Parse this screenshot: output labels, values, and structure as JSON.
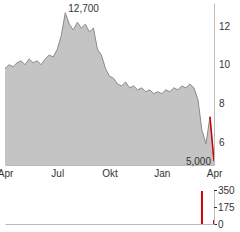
{
  "chart_data": [
    {
      "type": "area",
      "categories": [
        "Apr",
        null,
        null,
        null,
        null,
        null,
        null,
        null,
        null,
        null,
        null,
        null,
        null,
        "Jul",
        null,
        null,
        null,
        null,
        null,
        null,
        null,
        null,
        null,
        null,
        null,
        null,
        "Okt",
        null,
        null,
        null,
        null,
        null,
        null,
        null,
        null,
        null,
        null,
        null,
        null,
        "Jan",
        null,
        null,
        null,
        null,
        null,
        null,
        null,
        null,
        null,
        null,
        null,
        null,
        "Apr"
      ],
      "values": [
        9.8,
        10.0,
        9.9,
        10.1,
        10.2,
        10.0,
        10.3,
        10.1,
        10.2,
        10.0,
        10.3,
        10.5,
        10.4,
        10.8,
        11.5,
        12.7,
        12.1,
        11.8,
        12.2,
        11.9,
        12.1,
        11.7,
        11.9,
        10.8,
        10.5,
        9.8,
        9.4,
        9.3,
        9.0,
        8.9,
        9.1,
        8.8,
        8.9,
        8.7,
        8.8,
        8.6,
        8.7,
        8.5,
        8.6,
        8.5,
        8.7,
        8.6,
        8.8,
        8.7,
        8.9,
        8.8,
        9.0,
        8.8,
        8.2,
        6.6,
        5.9,
        7.3,
        5.0
      ],
      "color": "#c4c4c4",
      "ylim": [
        4.8,
        13.2
      ],
      "yticks": [
        6,
        8,
        10,
        12
      ],
      "annotations": [
        {
          "text": "12,700",
          "value": 12.7
        },
        {
          "text": "5,000",
          "value": 5.0
        }
      ]
    },
    {
      "type": "bar",
      "categories": [
        null,
        null,
        null,
        null,
        null,
        null,
        null,
        null,
        null,
        null,
        null,
        null,
        null,
        null,
        null,
        null,
        null,
        null,
        null,
        null,
        null,
        null,
        null,
        null,
        null,
        null,
        null,
        null,
        null,
        null,
        null,
        null,
        null,
        null,
        null,
        null,
        null,
        null,
        null,
        null,
        null,
        null,
        null,
        null,
        null,
        null,
        null,
        null,
        null,
        null,
        null,
        null,
        null
      ],
      "values": [
        0,
        0,
        0,
        0,
        0,
        0,
        0,
        0,
        0,
        0,
        0,
        0,
        0,
        0,
        0,
        0,
        0,
        0,
        0,
        0,
        0,
        0,
        0,
        0,
        0,
        0,
        0,
        0,
        0,
        0,
        0,
        0,
        0,
        0,
        0,
        0,
        0,
        0,
        0,
        0,
        0,
        0,
        0,
        0,
        0,
        0,
        0,
        0,
        0,
        340,
        0,
        0,
        40
      ],
      "color": "#d00000",
      "ylim": [
        0,
        350
      ],
      "yticks": [
        0,
        175,
        350
      ],
      "tick_labels": "y"
    }
  ]
}
